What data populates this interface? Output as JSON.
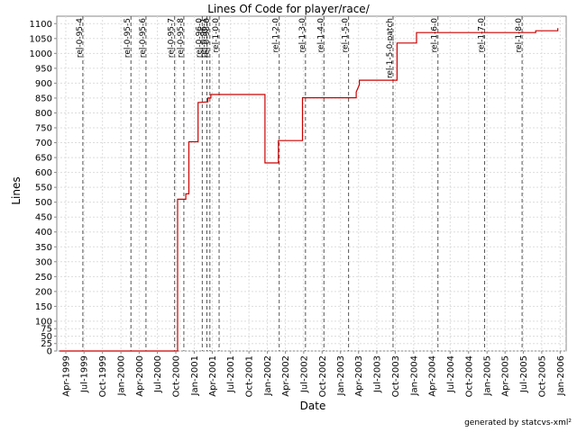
{
  "chart_data": {
    "type": "line",
    "title": "Lines Of Code for player/race/",
    "xlabel": "Date",
    "ylabel": "Lines",
    "credit": "generated by statcvs-xml²",
    "grid": true,
    "colors": {
      "series": "#cc0000",
      "tag_line": "#555555",
      "grid": "#dddddd"
    },
    "xlim": [
      "1999-02-15",
      "2006-01-31"
    ],
    "ylim": [
      0,
      1125
    ],
    "x_ticks": [
      {
        "date": "1999-04-01",
        "label": "Apr-1999"
      },
      {
        "date": "1999-07-01",
        "label": "Jul-1999"
      },
      {
        "date": "1999-10-01",
        "label": "Oct-1999"
      },
      {
        "date": "2000-01-01",
        "label": "Jan-2000"
      },
      {
        "date": "2000-04-01",
        "label": "Apr-2000"
      },
      {
        "date": "2000-07-01",
        "label": "Jul-2000"
      },
      {
        "date": "2000-10-01",
        "label": "Oct-2000"
      },
      {
        "date": "2001-01-01",
        "label": "Jan-2001"
      },
      {
        "date": "2001-04-01",
        "label": "Apr-2001"
      },
      {
        "date": "2001-07-01",
        "label": "Jul-2001"
      },
      {
        "date": "2001-10-01",
        "label": "Oct-2001"
      },
      {
        "date": "2002-01-01",
        "label": "Jan-2002"
      },
      {
        "date": "2002-04-01",
        "label": "Apr-2002"
      },
      {
        "date": "2002-07-01",
        "label": "Jul-2002"
      },
      {
        "date": "2002-10-01",
        "label": "Oct-2002"
      },
      {
        "date": "2003-01-01",
        "label": "Jan-2003"
      },
      {
        "date": "2003-04-01",
        "label": "Apr-2003"
      },
      {
        "date": "2003-07-01",
        "label": "Jul-2003"
      },
      {
        "date": "2003-10-01",
        "label": "Oct-2003"
      },
      {
        "date": "2004-01-01",
        "label": "Jan-2004"
      },
      {
        "date": "2004-04-01",
        "label": "Apr-2004"
      },
      {
        "date": "2004-07-01",
        "label": "Jul-2004"
      },
      {
        "date": "2004-10-01",
        "label": "Oct-2004"
      },
      {
        "date": "2005-01-01",
        "label": "Jan-2005"
      },
      {
        "date": "2005-04-01",
        "label": "Apr-2005"
      },
      {
        "date": "2005-07-01",
        "label": "Jul-2005"
      },
      {
        "date": "2005-10-01",
        "label": "Oct-2005"
      },
      {
        "date": "2006-01-01",
        "label": "Jan-2006"
      }
    ],
    "y_ticks": [
      0,
      25,
      50,
      75,
      100,
      150,
      200,
      250,
      300,
      350,
      400,
      450,
      500,
      550,
      600,
      650,
      700,
      750,
      800,
      850,
      900,
      950,
      1000,
      1050,
      1100
    ],
    "y_tick_labels": [
      "0",
      "25",
      "50",
      "75",
      "100",
      "150",
      "200",
      "250",
      "300",
      "350",
      "400",
      "450",
      "500",
      "550",
      "600",
      "650",
      "700",
      "750",
      "800",
      "850",
      "900",
      "950",
      "1000",
      "1050",
      "1100"
    ],
    "tags": [
      {
        "name": "rel-0-95-4",
        "date": "1999-06-25"
      },
      {
        "name": "rel-0-95-5",
        "date": "2000-02-20"
      },
      {
        "name": "rel-0-95-6",
        "date": "2000-05-05"
      },
      {
        "name": "rel-0-95-7",
        "date": "2000-09-25"
      },
      {
        "name": "rel-0-95-8",
        "date": "2000-11-10"
      },
      {
        "name": "rel-0-96-0",
        "date": "2001-02-10"
      },
      {
        "name": "rel-0-96-1",
        "date": "2001-03-05"
      },
      {
        "name": "rel-0-98-0",
        "date": "2001-03-20"
      },
      {
        "name": "rel-1-0-0",
        "date": "2001-05-05"
      },
      {
        "name": "rel-1-2-0",
        "date": "2002-03-01"
      },
      {
        "name": "rel-1-3-0",
        "date": "2002-07-10"
      },
      {
        "name": "rel-1-4-0",
        "date": "2002-10-10"
      },
      {
        "name": "rel-1-5-0",
        "date": "2003-02-10"
      },
      {
        "name": "rel-1-5-0-patch",
        "date": "2003-09-20"
      },
      {
        "name": "rel-1-6-0",
        "date": "2004-05-01"
      },
      {
        "name": "rel-1-7-0",
        "date": "2004-12-20"
      },
      {
        "name": "rel-1-8-0",
        "date": "2005-06-25"
      }
    ],
    "series": [
      {
        "values": [
          {
            "date": "1999-03-01",
            "value": 0
          },
          {
            "date": "2000-10-10",
            "value": 0
          },
          {
            "date": "2000-10-10",
            "value": 510
          },
          {
            "date": "2000-11-20",
            "value": 510
          },
          {
            "date": "2000-11-20",
            "value": 528
          },
          {
            "date": "2000-12-05",
            "value": 528
          },
          {
            "date": "2000-12-05",
            "value": 703
          },
          {
            "date": "2001-01-20",
            "value": 703
          },
          {
            "date": "2001-01-20",
            "value": 835
          },
          {
            "date": "2001-03-10",
            "value": 837
          },
          {
            "date": "2001-03-10",
            "value": 850
          },
          {
            "date": "2001-03-25",
            "value": 850
          },
          {
            "date": "2001-03-25",
            "value": 862
          },
          {
            "date": "2001-12-20",
            "value": 862
          },
          {
            "date": "2001-12-20",
            "value": 632
          },
          {
            "date": "2002-02-25",
            "value": 632
          },
          {
            "date": "2002-02-25",
            "value": 707
          },
          {
            "date": "2002-06-25",
            "value": 707
          },
          {
            "date": "2002-06-25",
            "value": 851
          },
          {
            "date": "2003-03-20",
            "value": 851
          },
          {
            "date": "2003-03-20",
            "value": 870
          },
          {
            "date": "2003-04-05",
            "value": 895
          },
          {
            "date": "2003-04-05",
            "value": 910
          },
          {
            "date": "2003-10-10",
            "value": 910
          },
          {
            "date": "2003-10-10",
            "value": 1035
          },
          {
            "date": "2004-01-15",
            "value": 1035
          },
          {
            "date": "2004-01-15",
            "value": 1070
          },
          {
            "date": "2005-09-01",
            "value": 1070
          },
          {
            "date": "2005-09-01",
            "value": 1076
          },
          {
            "date": "2005-12-20",
            "value": 1076
          },
          {
            "date": "2005-12-20",
            "value": 1085
          }
        ]
      }
    ]
  }
}
